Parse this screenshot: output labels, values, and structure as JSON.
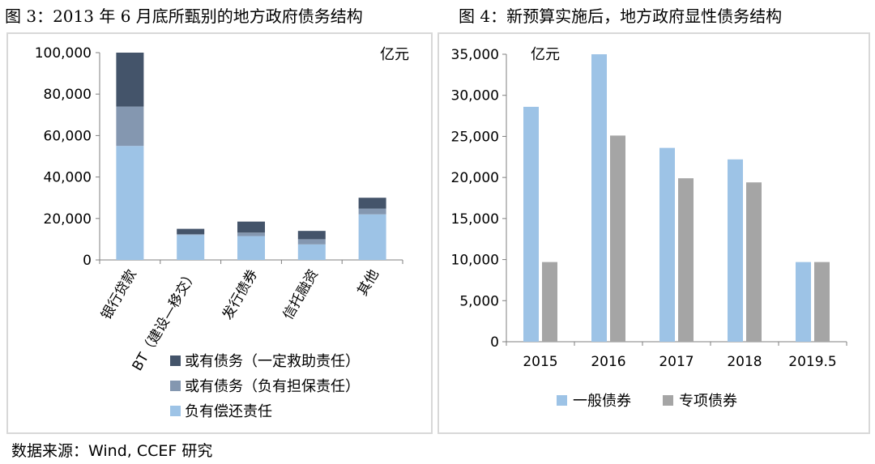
{
  "titles": {
    "left": "图 3：2013 年 6 月底所甄别的地方政府债务结构",
    "right": "图 4：新预算实施后，地方政府显性债务结构"
  },
  "source": "数据来源：Wind, CCEF 研究",
  "colors": {
    "contingent_rescue": "#44546a",
    "contingent_guarantee": "#8497b0",
    "repay": "#9dc3e6",
    "general_bond": "#9dc3e6",
    "special_bond": "#a5a5a5",
    "axis": "#7f7f7f"
  },
  "chart_data": [
    {
      "type": "bar",
      "stacked": true,
      "unit": "亿元",
      "categories": [
        "银行贷款",
        "BT（建设—移交）",
        "发行债券",
        "信托融资",
        "其他"
      ],
      "series": [
        {
          "name": "负有偿还责任",
          "values": [
            55000,
            12000,
            11500,
            7500,
            22000
          ]
        },
        {
          "name": "或有债务（负有担保责任）",
          "values": [
            19000,
            500,
            1700,
            2500,
            2800
          ]
        },
        {
          "name": "或有债务（一定救助责任）",
          "values": [
            26000,
            2500,
            5300,
            4000,
            5200
          ]
        }
      ],
      "ylim": [
        0,
        100000
      ],
      "yticks": [
        "0",
        "20,000",
        "40,000",
        "60,000",
        "80,000",
        "100,000"
      ],
      "ytick_values": [
        0,
        20000,
        40000,
        60000,
        80000,
        100000
      ],
      "legend_order": [
        "或有债务（一定救助责任）",
        "或有债务（负有担保责任）",
        "负有偿还责任"
      ],
      "legend": "bottom-left",
      "grid": false
    },
    {
      "type": "bar",
      "stacked": false,
      "unit": "亿元",
      "categories": [
        "2015",
        "2016",
        "2017",
        "2018",
        "2019.5"
      ],
      "series": [
        {
          "name": "一般债券",
          "values": [
            28600,
            35000,
            23600,
            22200,
            9700
          ]
        },
        {
          "name": "专项债券",
          "values": [
            9700,
            25100,
            19900,
            19400,
            9700
          ]
        }
      ],
      "ylim": [
        0,
        35000
      ],
      "yticks": [
        "0",
        "5,000",
        "10,000",
        "15,000",
        "20,000",
        "25,000",
        "30,000",
        "35,000"
      ],
      "ytick_values": [
        0,
        5000,
        10000,
        15000,
        20000,
        25000,
        30000,
        35000
      ],
      "legend": "bottom",
      "grid": false
    }
  ]
}
